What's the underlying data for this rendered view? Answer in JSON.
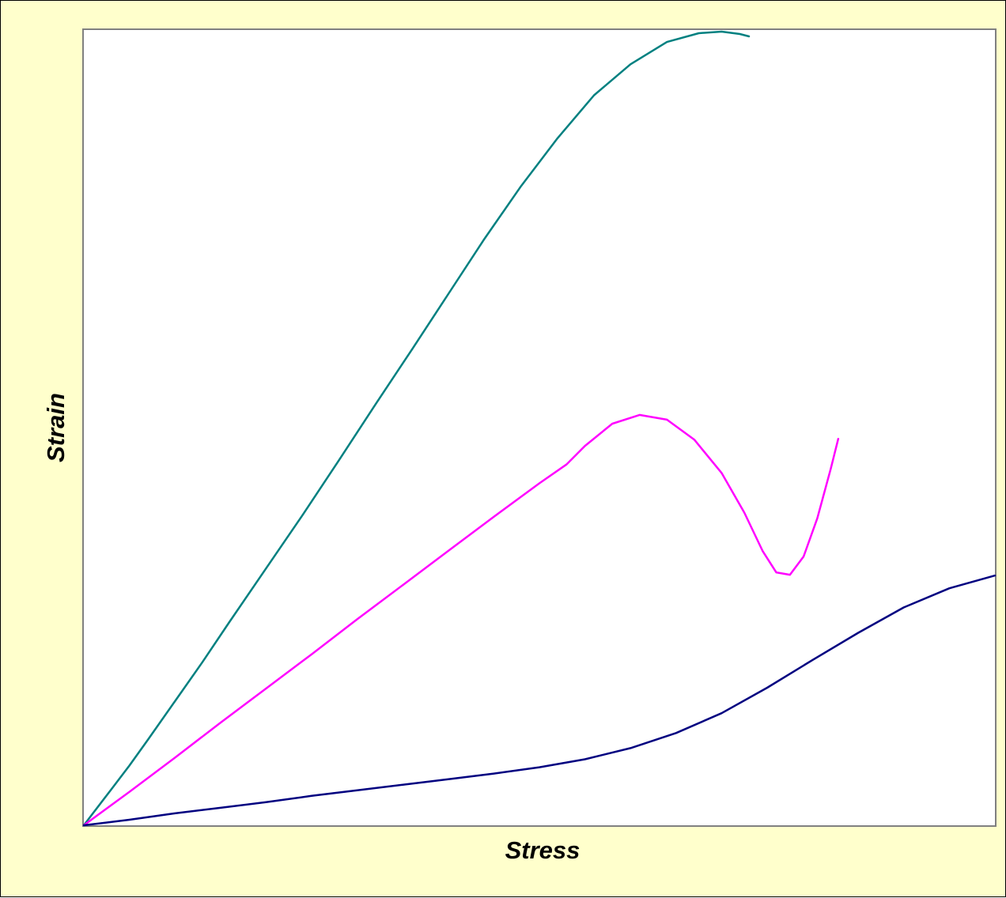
{
  "chart_data": {
    "type": "line",
    "title": "",
    "xlabel": "Stress",
    "ylabel": "Strain",
    "xlim": [
      0,
      100
    ],
    "ylim": [
      0,
      100
    ],
    "grid": false,
    "legend": "none",
    "plot_background": "#ffffff",
    "chart_background": "#ffffcc",
    "plot_border_color": "#808080",
    "series": [
      {
        "color": "#008080",
        "points": [
          [
            0,
            0
          ],
          [
            1,
            1.5
          ],
          [
            3,
            4.5
          ],
          [
            5,
            7.5
          ],
          [
            7,
            10.7
          ],
          [
            10,
            15.6
          ],
          [
            13,
            20.5
          ],
          [
            16,
            25.6
          ],
          [
            20,
            32.3
          ],
          [
            24,
            39
          ],
          [
            28,
            45.9
          ],
          [
            32,
            52.9
          ],
          [
            36,
            59.8
          ],
          [
            40,
            66.8
          ],
          [
            44,
            73.8
          ],
          [
            48,
            80.4
          ],
          [
            52,
            86.4
          ],
          [
            56,
            91.8
          ],
          [
            60,
            95.7
          ],
          [
            64,
            98.5
          ],
          [
            67.5,
            99.6
          ],
          [
            70,
            99.8
          ],
          [
            72,
            99.5
          ],
          [
            73,
            99.2
          ]
        ]
      },
      {
        "color": "#ff00ff",
        "points": [
          [
            0,
            0
          ],
          [
            5,
            4.2
          ],
          [
            10,
            8.5
          ],
          [
            15,
            12.9
          ],
          [
            20,
            17.2
          ],
          [
            25,
            21.5
          ],
          [
            30,
            25.9
          ],
          [
            35,
            30.2
          ],
          [
            40,
            34.5
          ],
          [
            45,
            38.8
          ],
          [
            50,
            43
          ],
          [
            53,
            45.4
          ],
          [
            55,
            47.7
          ],
          [
            58,
            50.5
          ],
          [
            61,
            51.6
          ],
          [
            64,
            51
          ],
          [
            67,
            48.5
          ],
          [
            70,
            44.3
          ],
          [
            72.5,
            39.3
          ],
          [
            74.5,
            34.5
          ],
          [
            76,
            31.8
          ],
          [
            77.5,
            31.5
          ],
          [
            79,
            33.8
          ],
          [
            80.5,
            38.6
          ],
          [
            82,
            44.9
          ],
          [
            82.8,
            48.6
          ]
        ]
      },
      {
        "color": "#000080",
        "points": [
          [
            0,
            0
          ],
          [
            5,
            0.7
          ],
          [
            10,
            1.5
          ],
          [
            15,
            2.2
          ],
          [
            20,
            2.9
          ],
          [
            25,
            3.7
          ],
          [
            30,
            4.4
          ],
          [
            35,
            5.1
          ],
          [
            40,
            5.8
          ],
          [
            45,
            6.5
          ],
          [
            50,
            7.3
          ],
          [
            55,
            8.3
          ],
          [
            60,
            9.7
          ],
          [
            65,
            11.6
          ],
          [
            70,
            14.1
          ],
          [
            75,
            17.3
          ],
          [
            80,
            20.8
          ],
          [
            85,
            24.2
          ],
          [
            90,
            27.4
          ],
          [
            95,
            29.8
          ],
          [
            100,
            31.4
          ]
        ]
      }
    ]
  }
}
